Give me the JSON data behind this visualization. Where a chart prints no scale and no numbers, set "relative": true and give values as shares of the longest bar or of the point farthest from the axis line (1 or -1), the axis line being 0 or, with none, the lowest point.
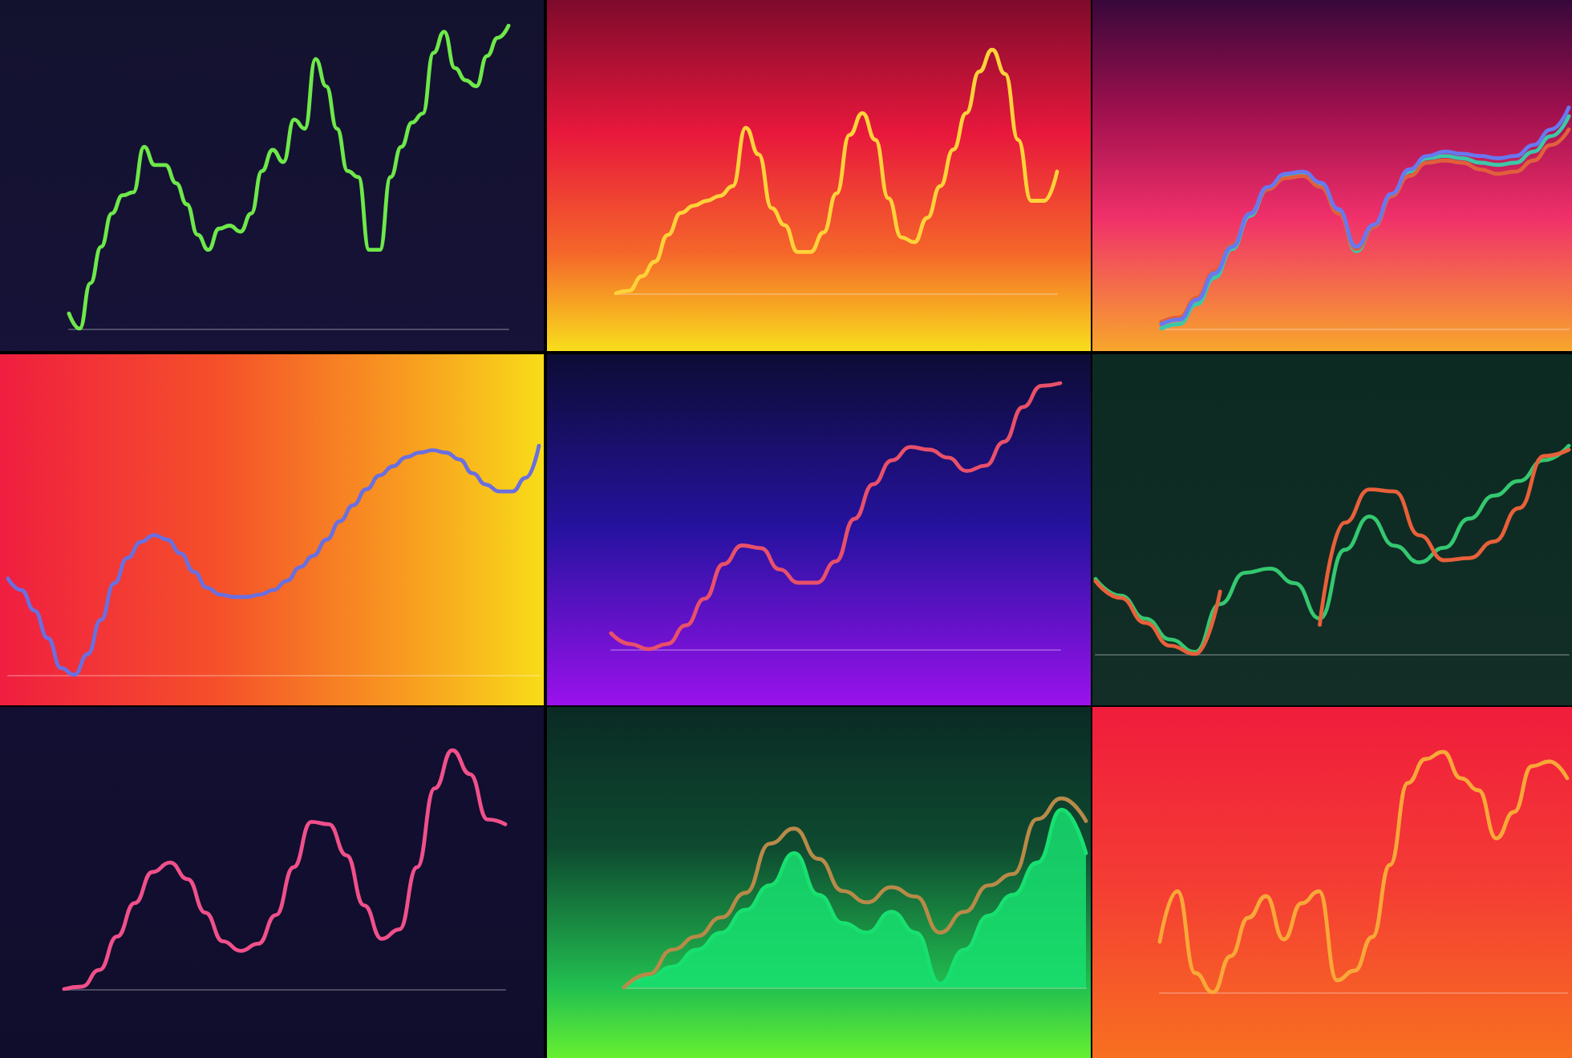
{
  "chart_data": [
    {
      "type": "line",
      "relative": true,
      "categories": [
        null,
        null,
        null,
        null,
        null,
        null,
        null,
        null,
        null,
        null,
        null,
        null,
        null,
        null,
        null,
        null,
        null,
        null,
        null,
        null,
        null,
        null,
        null,
        null,
        null,
        null,
        null,
        null,
        null,
        null,
        null,
        null,
        null,
        null,
        null,
        null,
        null,
        null,
        null,
        null,
        null,
        null
      ],
      "color": "#6ee84a",
      "values": [
        0.05,
        0.0,
        0.15,
        0.27,
        0.38,
        0.44,
        0.45,
        0.6,
        0.54,
        0.54,
        0.48,
        0.41,
        0.31,
        0.26,
        0.33,
        0.34,
        0.32,
        0.38,
        0.52,
        0.59,
        0.55,
        0.69,
        0.66,
        0.89,
        0.8,
        0.66,
        0.52,
        0.5,
        0.26,
        0.26,
        0.5,
        0.6,
        0.68,
        0.71,
        0.91,
        0.98,
        0.86,
        0.82,
        0.8,
        0.9,
        0.96,
        1.0
      ]
    },
    {
      "type": "line",
      "relative": true,
      "categories": [
        null,
        null,
        null,
        null,
        null,
        null,
        null,
        null,
        null,
        null,
        null,
        null,
        null,
        null,
        null,
        null,
        null,
        null,
        null,
        null,
        null,
        null,
        null,
        null,
        null,
        null,
        null,
        null,
        null,
        null,
        null,
        null,
        null,
        null,
        null
      ],
      "color": "#ffd23a",
      "values": [
        0.0,
        0.01,
        0.07,
        0.13,
        0.24,
        0.33,
        0.36,
        0.38,
        0.4,
        0.44,
        0.68,
        0.57,
        0.35,
        0.28,
        0.17,
        0.17,
        0.25,
        0.41,
        0.65,
        0.74,
        0.63,
        0.39,
        0.23,
        0.21,
        0.31,
        0.44,
        0.59,
        0.74,
        0.91,
        1.0,
        0.9,
        0.63,
        0.38,
        0.38,
        0.5
      ]
    },
    {
      "type": "line",
      "relative": true,
      "categories": [
        null,
        null,
        null,
        null,
        null,
        null,
        null,
        null,
        null,
        null,
        null,
        null,
        null,
        null,
        null,
        null,
        null,
        null,
        null,
        null,
        null,
        null,
        null,
        null
      ],
      "series": [
        {
          "color": "#3cc8a8",
          "values": [
            0.0,
            0.02,
            0.11,
            0.23,
            0.36,
            0.51,
            0.63,
            0.69,
            0.7,
            0.65,
            0.53,
            0.35,
            0.46,
            0.6,
            0.71,
            0.77,
            0.78,
            0.77,
            0.75,
            0.74,
            0.75,
            0.8,
            0.87,
            0.96
          ]
        },
        {
          "color": "#e0603c",
          "values": [
            0.03,
            0.05,
            0.14,
            0.26,
            0.38,
            0.52,
            0.63,
            0.68,
            0.69,
            0.64,
            0.52,
            0.36,
            0.46,
            0.6,
            0.69,
            0.75,
            0.76,
            0.75,
            0.72,
            0.7,
            0.71,
            0.76,
            0.83,
            0.9
          ]
        },
        {
          "color": "#6878f0",
          "values": [
            0.02,
            0.04,
            0.13,
            0.25,
            0.37,
            0.52,
            0.64,
            0.7,
            0.71,
            0.66,
            0.54,
            0.37,
            0.47,
            0.61,
            0.72,
            0.78,
            0.8,
            0.79,
            0.78,
            0.77,
            0.78,
            0.83,
            0.9,
            1.0
          ]
        }
      ]
    },
    {
      "type": "line",
      "relative": true,
      "categories": [
        null,
        null,
        null,
        null,
        null,
        null,
        null,
        null,
        null,
        null,
        null,
        null,
        null,
        null,
        null,
        null,
        null,
        null,
        null,
        null,
        null,
        null,
        null,
        null,
        null,
        null,
        null,
        null,
        null,
        null,
        null,
        null,
        null,
        null,
        null,
        null,
        null,
        null,
        null,
        null,
        null
      ],
      "color": "#6a6fe0",
      "values": [
        0.42,
        0.37,
        0.28,
        0.16,
        0.03,
        0.0,
        0.09,
        0.24,
        0.4,
        0.51,
        0.58,
        0.61,
        0.59,
        0.53,
        0.45,
        0.38,
        0.35,
        0.34,
        0.34,
        0.35,
        0.37,
        0.41,
        0.47,
        0.52,
        0.59,
        0.67,
        0.74,
        0.81,
        0.87,
        0.91,
        0.95,
        0.97,
        0.98,
        0.97,
        0.94,
        0.88,
        0.83,
        0.8,
        0.8,
        0.86,
        1.0
      ]
    },
    {
      "type": "line",
      "relative": true,
      "categories": [
        null,
        null,
        null,
        null,
        null,
        null,
        null,
        null,
        null,
        null,
        null,
        null,
        null,
        null,
        null,
        null,
        null,
        null,
        null,
        null,
        null,
        null,
        null,
        null,
        null
      ],
      "color": "#e8506a",
      "values": [
        0.06,
        0.02,
        0.0,
        0.02,
        0.09,
        0.19,
        0.32,
        0.39,
        0.38,
        0.3,
        0.25,
        0.25,
        0.33,
        0.49,
        0.62,
        0.71,
        0.76,
        0.75,
        0.72,
        0.67,
        0.69,
        0.78,
        0.91,
        0.99,
        1.0
      ]
    },
    {
      "type": "line",
      "relative": true,
      "categories": [
        null,
        null,
        null,
        null,
        null,
        null,
        null,
        null,
        null,
        null,
        null,
        null,
        null,
        null,
        null,
        null,
        null,
        null,
        null,
        null
      ],
      "series": [
        {
          "color": "#34c870",
          "values": [
            0.36,
            0.28,
            0.17,
            0.07,
            0.01,
            0.24,
            0.39,
            0.41,
            0.34,
            0.17,
            0.5,
            0.66,
            0.52,
            0.44,
            0.51,
            0.65,
            0.76,
            0.83,
            0.93,
            1.0
          ]
        },
        {
          "color": "#e8603a",
          "values": [
            0.35,
            0.27,
            0.15,
            0.04,
            0.0,
            0.3,
            null,
            null,
            null,
            0.14,
            0.63,
            0.79,
            0.78,
            0.57,
            0.45,
            0.46,
            0.54,
            0.7,
            0.95,
            0.98
          ]
        }
      ]
    },
    {
      "type": "line",
      "relative": true,
      "categories": [
        null,
        null,
        null,
        null,
        null,
        null,
        null,
        null,
        null,
        null,
        null,
        null,
        null,
        null,
        null,
        null,
        null,
        null,
        null,
        null,
        null,
        null,
        null,
        null,
        null,
        null
      ],
      "color": "#f0508a",
      "values": [
        0.0,
        0.01,
        0.08,
        0.22,
        0.36,
        0.49,
        0.53,
        0.46,
        0.32,
        0.2,
        0.16,
        0.19,
        0.31,
        0.51,
        0.7,
        0.69,
        0.56,
        0.35,
        0.21,
        0.25,
        0.51,
        0.84,
        1.0,
        0.9,
        0.71,
        0.69
      ]
    },
    {
      "type": "area",
      "relative": true,
      "categories": [
        null,
        null,
        null,
        null,
        null,
        null,
        null,
        null,
        null,
        null,
        null,
        null,
        null,
        null,
        null,
        null,
        null,
        null,
        null,
        null
      ],
      "series": [
        {
          "color": "#18e070",
          "values": [
            0.0,
            0.05,
            0.11,
            0.2,
            0.29,
            0.41,
            0.54,
            0.71,
            0.49,
            0.34,
            0.29,
            0.4,
            0.29,
            0.02,
            0.2,
            0.38,
            0.49,
            0.66,
            0.94,
            0.71
          ]
        },
        {
          "type": "line",
          "color": "#b88a48",
          "values": [
            0.0,
            0.07,
            0.2,
            0.27,
            0.37,
            0.5,
            0.76,
            0.84,
            0.68,
            0.51,
            0.45,
            0.53,
            0.48,
            0.29,
            0.4,
            0.54,
            0.6,
            0.89,
            1.0,
            0.88
          ]
        }
      ]
    },
    {
      "type": "line",
      "relative": true,
      "categories": [
        null,
        null,
        null,
        null,
        null,
        null,
        null,
        null,
        null,
        null,
        null,
        null,
        null,
        null,
        null,
        null,
        null,
        null,
        null,
        null,
        null,
        null,
        null,
        null
      ],
      "color": "#f8a838",
      "values": [
        0.21,
        0.42,
        0.08,
        0.0,
        0.15,
        0.31,
        0.4,
        0.22,
        0.37,
        0.42,
        0.05,
        0.09,
        0.23,
        0.53,
        0.87,
        0.97,
        1.0,
        0.89,
        0.84,
        0.64,
        0.75,
        0.94,
        0.96,
        0.89
      ]
    }
  ]
}
